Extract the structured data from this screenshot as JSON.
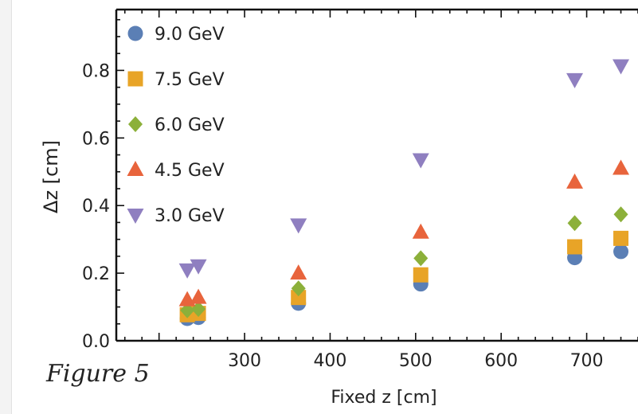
{
  "figure_label": "Figure 5",
  "chart_data": {
    "type": "scatter",
    "xlabel": "Fixed z [cm]",
    "ylabel": "Δz [cm]",
    "xlim": [
      150,
      760
    ],
    "ylim": [
      0,
      0.98
    ],
    "x_ticks": [
      300,
      400,
      500,
      600,
      700
    ],
    "y_ticks": [
      0.0,
      0.2,
      0.4,
      0.6,
      0.8
    ],
    "y_tick_labels": [
      "0.0",
      "0.2",
      "0.4",
      "0.6",
      "0.8"
    ],
    "legend_position": "top-left",
    "series": [
      {
        "name": "9.0 GeV",
        "marker": "circle",
        "color": "#5b7fb5",
        "points": [
          [
            233,
            0.066
          ],
          [
            246,
            0.069
          ],
          [
            363,
            0.111
          ],
          [
            506,
            0.168
          ],
          [
            686,
            0.246
          ],
          [
            740,
            0.264
          ]
        ]
      },
      {
        "name": "7.5 GeV",
        "marker": "square",
        "color": "#e8a427",
        "points": [
          [
            233,
            0.077
          ],
          [
            246,
            0.081
          ],
          [
            363,
            0.128
          ],
          [
            506,
            0.195
          ],
          [
            686,
            0.278
          ],
          [
            740,
            0.303
          ]
        ]
      },
      {
        "name": "6.0 GeV",
        "marker": "diamond",
        "color": "#8cb03a",
        "points": [
          [
            233,
            0.09
          ],
          [
            246,
            0.094
          ],
          [
            363,
            0.155
          ],
          [
            506,
            0.244
          ],
          [
            686,
            0.348
          ],
          [
            740,
            0.374
          ]
        ]
      },
      {
        "name": "4.5 GeV",
        "marker": "triangle-up",
        "color": "#e8643c",
        "points": [
          [
            233,
            0.121
          ],
          [
            246,
            0.128
          ],
          [
            363,
            0.2
          ],
          [
            506,
            0.321
          ],
          [
            686,
            0.469
          ],
          [
            740,
            0.51
          ]
        ]
      },
      {
        "name": "3.0 GeV",
        "marker": "triangle-down",
        "color": "#8f7fc0",
        "points": [
          [
            233,
            0.21
          ],
          [
            246,
            0.222
          ],
          [
            363,
            0.343
          ],
          [
            506,
            0.536
          ],
          [
            686,
            0.773
          ],
          [
            740,
            0.814
          ]
        ]
      }
    ]
  }
}
